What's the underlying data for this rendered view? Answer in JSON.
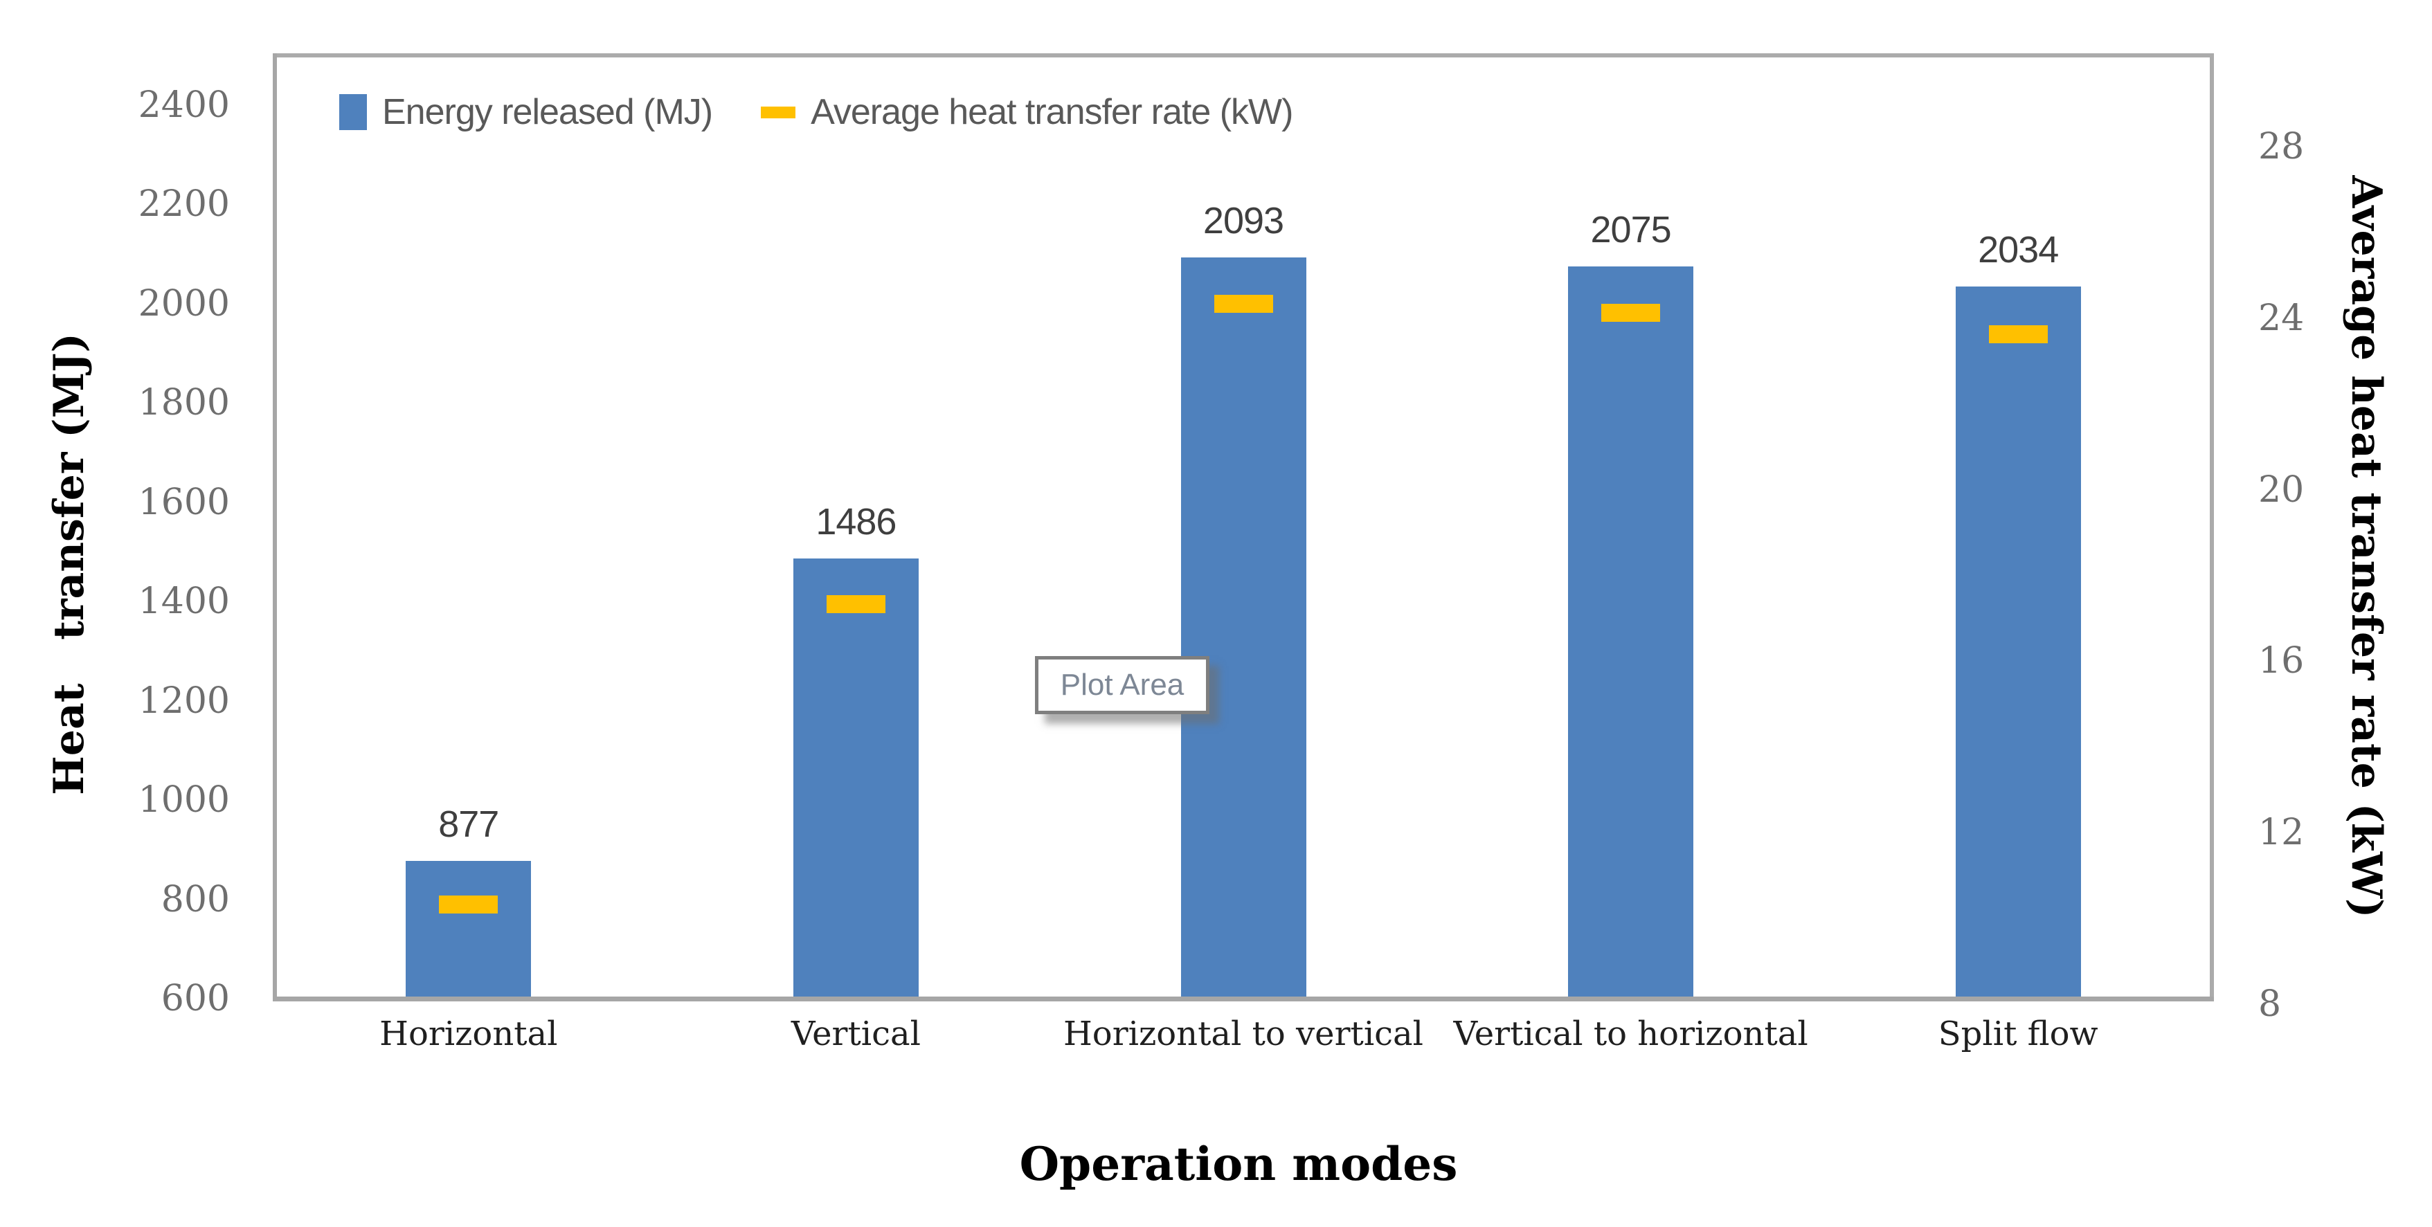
{
  "chart_data": {
    "type": "bar",
    "title": "",
    "categories": [
      "Horizontal",
      "Vertical",
      "Horizontal to vertical",
      "Vertical to horizontal",
      "Split flow"
    ],
    "series": [
      {
        "name": "Energy released (MJ)",
        "type": "bar",
        "axis": "left",
        "values": [
          877,
          1486,
          2093,
          2075,
          2034
        ],
        "data_labels": [
          "877",
          "1486",
          "2093",
          "2075",
          "2034"
        ],
        "color": "#4f81bd"
      },
      {
        "name": "Average heat transfer rate (kW)",
        "type": "dash-marker",
        "axis": "right",
        "values": [
          10.2,
          17.2,
          24.2,
          24.0,
          23.5
        ],
        "color": "#ffc000"
      }
    ],
    "left_axis": {
      "label": "Heat   transfer (MJ)",
      "min": 600,
      "max": 2500,
      "tick_step": 200,
      "ticks": [
        600,
        800,
        1000,
        1200,
        1400,
        1600,
        1800,
        2000,
        2200,
        2400
      ]
    },
    "right_axis": {
      "label": "Average heat transfer rate (kW)",
      "min": 8,
      "max": 30,
      "tick_step": 4,
      "ticks": [
        8,
        12,
        16,
        20,
        24,
        28
      ]
    },
    "x_axis": {
      "label": "Operation modes"
    },
    "legend": {
      "position": "top-left"
    },
    "grid": false
  },
  "overlay": {
    "plot_area_tooltip": "Plot Area"
  },
  "colors": {
    "bar_blue": "#4f81bd",
    "dash_yellow": "#ffc000",
    "axis_gray": "#a6a6a6",
    "border_gray": "#ababab",
    "tick_gray": "#6e6e6e",
    "datalabel_gray": "#3f3f3f",
    "legend_gray": "#595959",
    "tooltip_border": "#7f7f7f",
    "tooltip_text": "#7d8795"
  }
}
